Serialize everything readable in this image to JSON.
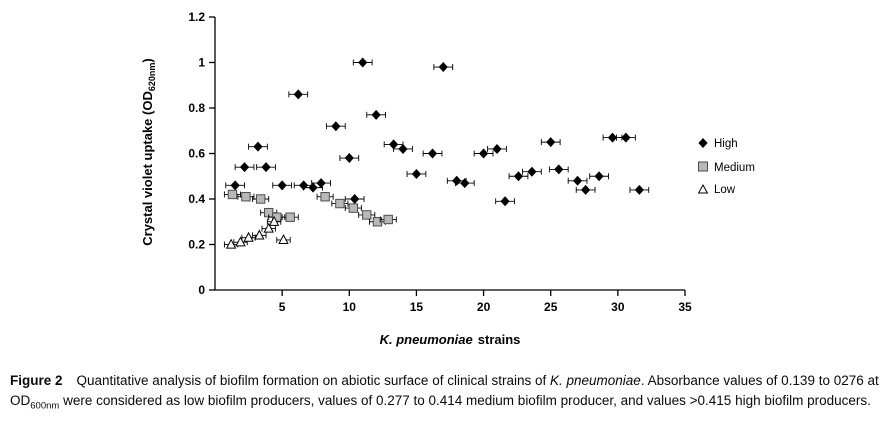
{
  "chart_data": {
    "type": "scatter",
    "title": "",
    "ylabel_main": "Crystal violet uptake (OD",
    "ylabel_sub": "620nm",
    "ylabel_close": ")",
    "xlabel_species": "K. pneumoniae",
    "xlabel_rest": "strains",
    "xlim": [
      0,
      35
    ],
    "ylim": [
      0,
      1.2
    ],
    "x_ticks": [
      5,
      10,
      15,
      20,
      25,
      30,
      35
    ],
    "y_ticks": [
      {
        "v": 0,
        "label": "0"
      },
      {
        "v": 0.2,
        "label": "0.2"
      },
      {
        "v": 0.4,
        "label": "0.4"
      },
      {
        "v": 0.6,
        "label": "0.6"
      },
      {
        "v": 0.8,
        "label": "0.8"
      },
      {
        "v": 1.0,
        "label": "1"
      },
      {
        "v": 1.2,
        "label": "1.2"
      }
    ],
    "grid": false,
    "legend_position": "right",
    "colors": {
      "high": "#000000",
      "medium": "#b8b8b8",
      "medium_stroke": "#4d4d4d",
      "low_fill": "#ffffff",
      "low_stroke": "#000000"
    },
    "series": [
      {
        "name": "High",
        "marker": "diamond",
        "color": "#000000",
        "stroke": "#000000",
        "xerr": 0.7,
        "points": [
          [
            1.5,
            0.46
          ],
          [
            2.2,
            0.54
          ],
          [
            3.2,
            0.63
          ],
          [
            3.8,
            0.54
          ],
          [
            5.0,
            0.46
          ],
          [
            6.2,
            0.86
          ],
          [
            6.6,
            0.46
          ],
          [
            7.3,
            0.45
          ],
          [
            7.9,
            0.47
          ],
          [
            9.0,
            0.72
          ],
          [
            10.0,
            0.58
          ],
          [
            10.4,
            0.4
          ],
          [
            11.0,
            1.0
          ],
          [
            12.0,
            0.77
          ],
          [
            13.3,
            0.64
          ],
          [
            14.0,
            0.62
          ],
          [
            15.0,
            0.51
          ],
          [
            16.2,
            0.6
          ],
          [
            17.0,
            0.98
          ],
          [
            18.0,
            0.48
          ],
          [
            18.6,
            0.47
          ],
          [
            20.0,
            0.6
          ],
          [
            21.0,
            0.62
          ],
          [
            21.6,
            0.39
          ],
          [
            22.6,
            0.5
          ],
          [
            23.6,
            0.52
          ],
          [
            25.0,
            0.65
          ],
          [
            25.6,
            0.53
          ],
          [
            27.0,
            0.48
          ],
          [
            27.6,
            0.44
          ],
          [
            28.6,
            0.5
          ],
          [
            29.6,
            0.67
          ],
          [
            30.6,
            0.67
          ],
          [
            31.6,
            0.44
          ]
        ]
      },
      {
        "name": "Medium",
        "marker": "square",
        "color": "#b8b8b8",
        "stroke": "#4d4d4d",
        "xerr": 0.6,
        "points": [
          [
            1.3,
            0.42
          ],
          [
            2.3,
            0.41
          ],
          [
            3.4,
            0.4
          ],
          [
            4.0,
            0.34
          ],
          [
            4.6,
            0.32
          ],
          [
            5.6,
            0.32
          ],
          [
            8.2,
            0.41
          ],
          [
            9.3,
            0.38
          ],
          [
            10.3,
            0.36
          ],
          [
            11.3,
            0.33
          ],
          [
            12.1,
            0.3
          ],
          [
            12.9,
            0.31
          ]
        ]
      },
      {
        "name": "Low",
        "marker": "triangle",
        "color": "#ffffff",
        "stroke": "#000000",
        "xerr": 0.5,
        "points": [
          [
            1.2,
            0.2
          ],
          [
            1.9,
            0.21
          ],
          [
            2.5,
            0.23
          ],
          [
            3.3,
            0.24
          ],
          [
            4.0,
            0.27
          ],
          [
            4.4,
            0.3
          ],
          [
            5.1,
            0.22
          ]
        ]
      }
    ]
  },
  "caption": {
    "label": "Figure 2",
    "seg1": "Quantitative analysis of biofilm formation on abiotic surface of clinical strains of ",
    "species": "K. pneumoniae",
    "seg2": ". Absorbance values of 0.139 to 0276 at OD",
    "od_sub": "600nm",
    "seg3": " were considered as low biofilm producers, values of 0.277 to 0.414 medium biofilm producer, and values >0.415 high biofilm producers."
  }
}
